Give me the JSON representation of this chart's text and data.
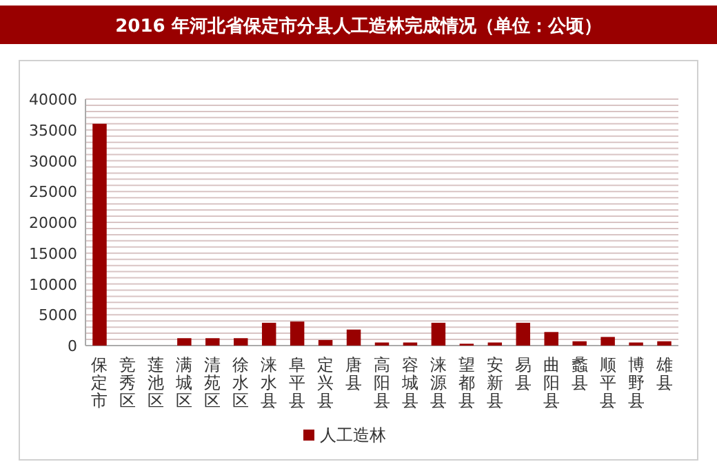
{
  "chart_data": {
    "type": "bar",
    "title": "2016 年河北省保定市分县人工造林完成情况（单位：公顷）",
    "categories": [
      "保定市",
      "竞秀区",
      "莲池区",
      "满城区",
      "清苑区",
      "徐水区",
      "涞水县",
      "阜平县",
      "定兴县",
      "唐县",
      "高阳县",
      "容城县",
      "涞源县",
      "望都县",
      "安新县",
      "易县",
      "曲阳县",
      "蠡县",
      "顺平县",
      "博野县",
      "雄县"
    ],
    "series": [
      {
        "name": "人工造林",
        "color": "#990000",
        "values": [
          36000,
          0,
          0,
          1200,
          1200,
          1200,
          3700,
          3900,
          900,
          2600,
          500,
          500,
          3700,
          300,
          500,
          3700,
          2200,
          700,
          1400,
          500,
          700
        ]
      }
    ],
    "ylim": [
      0,
      40000
    ],
    "yticks": [
      0,
      {
        "value": 1000,
        "label": null
      },
      {
        "value": 2000,
        "label": null
      },
      {
        "value": 3000,
        "label": null
      },
      {
        "value": 4000,
        "label": null
      },
      5000,
      {
        "value": 6000,
        "label": null
      },
      {
        "value": 7000,
        "label": null
      },
      {
        "value": 8000,
        "label": null
      },
      {
        "value": 9000,
        "label": null
      },
      10000,
      {
        "value": 11000,
        "label": null
      },
      {
        "value": 12000,
        "label": null
      },
      {
        "value": 13000,
        "label": null
      },
      {
        "value": 14000,
        "label": null
      },
      15000,
      {
        "value": 16000,
        "label": null
      },
      {
        "value": 17000,
        "label": null
      },
      {
        "value": 18000,
        "label": null
      },
      {
        "value": 19000,
        "label": null
      },
      20000,
      {
        "value": 21000,
        "label": null
      },
      {
        "value": 22000,
        "label": null
      },
      {
        "value": 23000,
        "label": null
      },
      {
        "value": 24000,
        "label": null
      },
      25000,
      {
        "value": 26000,
        "label": null
      },
      {
        "value": 27000,
        "label": null
      },
      {
        "value": 28000,
        "label": null
      },
      {
        "value": 29000,
        "label": null
      },
      30000,
      {
        "value": 31000,
        "label": null
      },
      {
        "value": 32000,
        "label": null
      },
      {
        "value": 33000,
        "label": null
      },
      {
        "value": 34000,
        "label": null
      },
      35000,
      {
        "value": 36000,
        "label": null
      },
      {
        "value": 37000,
        "label": null
      },
      {
        "value": 38000,
        "label": null
      },
      {
        "value": 39000,
        "label": null
      },
      40000
    ],
    "grid": "y",
    "legend": "bottom"
  }
}
